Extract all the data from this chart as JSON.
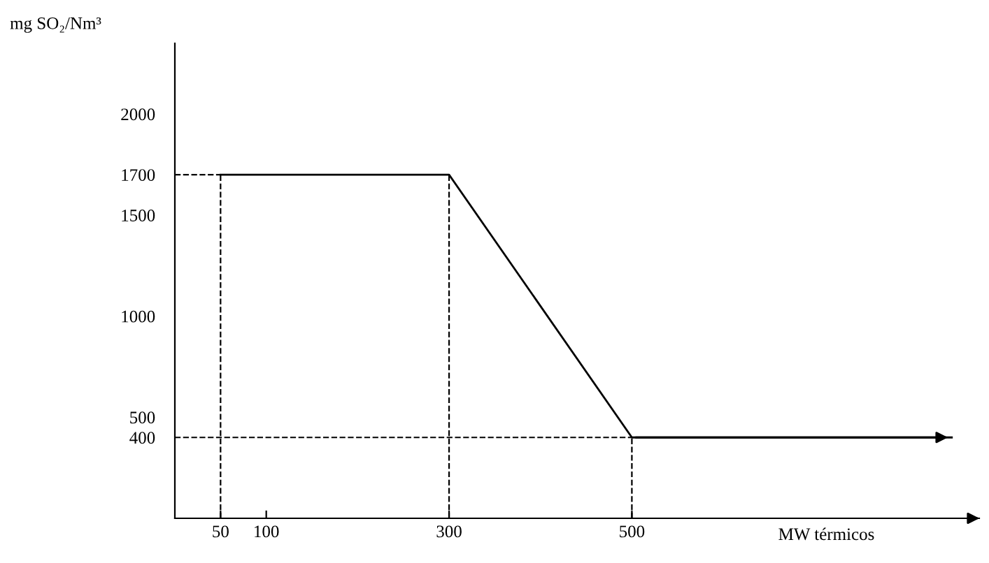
{
  "chart_data": {
    "type": "line",
    "xlabel": "MW térmicos",
    "ylabel": "mg SO₂/Nm³",
    "x": [
      50,
      300,
      500,
      850
    ],
    "series": [
      {
        "color": "#000000",
        "values": [
          1700,
          1700,
          400,
          400
        ]
      },
      {
        "color": "#000000",
        "x": [
          0,
          50
        ],
        "values": [
          1700,
          1700
        ],
        "line_style": "dashed"
      },
      {
        "color": "#000000",
        "x": [
          0,
          500
        ],
        "values": [
          400,
          400
        ],
        "line_style": "dashed"
      }
    ],
    "ref_lines": [
      {
        "axis": "x",
        "value": 50,
        "line_style": "dashed",
        "color": "#000000"
      },
      {
        "axis": "x",
        "value": 300,
        "line_style": "dashed",
        "color": "#000000"
      },
      {
        "axis": "x",
        "value": 500,
        "line_style": "dashed",
        "color": "#000000"
      }
    ],
    "xlim": [
      0,
      880
    ],
    "ylim": [
      0,
      2350
    ],
    "xticks": [
      50,
      100,
      300,
      500
    ],
    "yticks": [
      400,
      500,
      1000,
      1500,
      1700,
      2000
    ],
    "grid": false,
    "legend": false,
    "marker": "none",
    "line_style": "solid"
  }
}
